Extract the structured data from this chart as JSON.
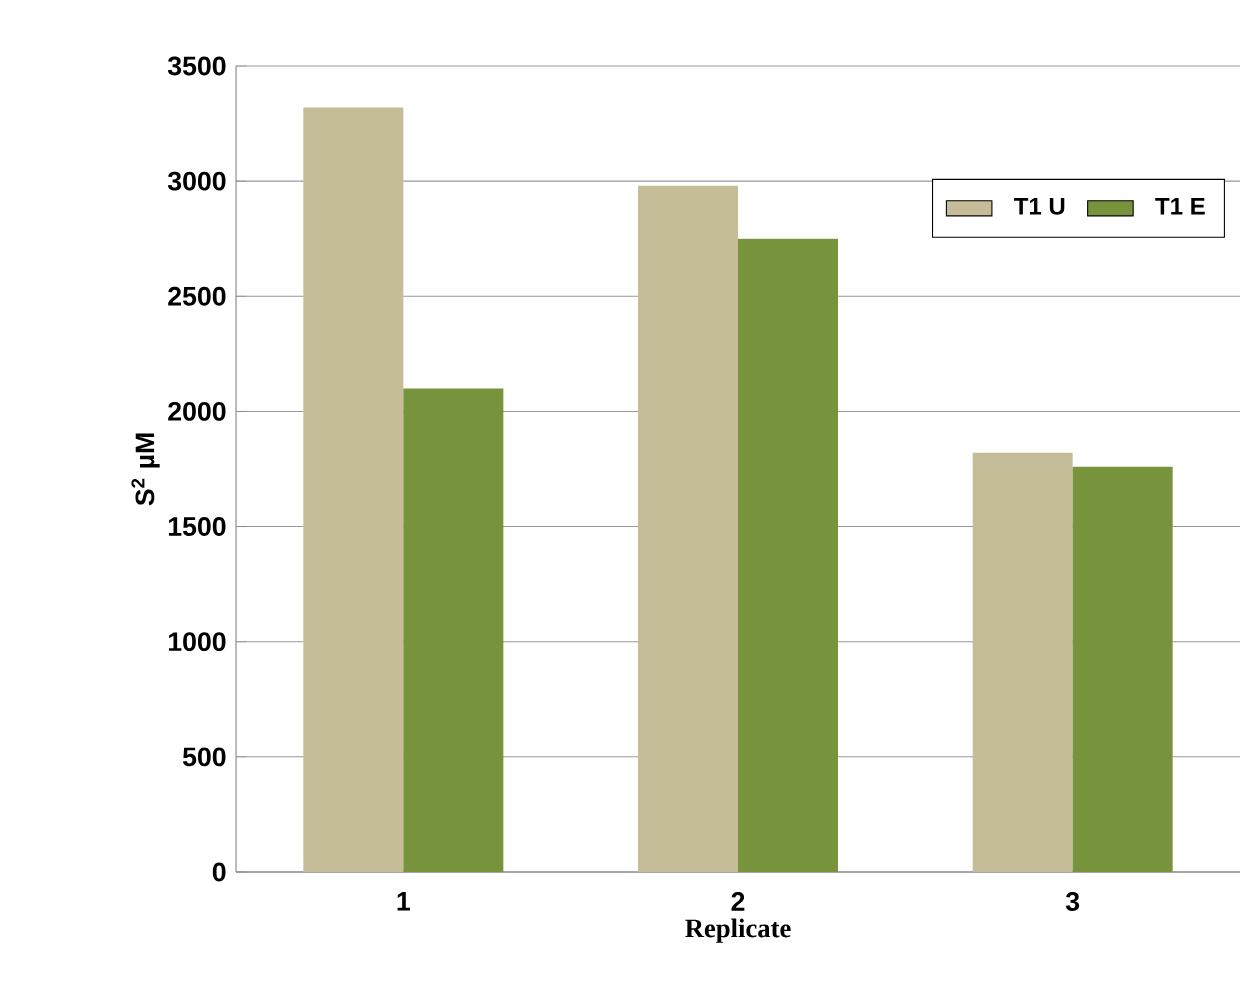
{
  "chart_data": {
    "type": "bar",
    "xlabel": "Replicate",
    "ylabel": "S$^{2}$ µM",
    "categories": [
      "1",
      "2",
      "3"
    ],
    "series": [
      {
        "name": "T1 U",
        "color": "#c4bd97",
        "values": [
          3320,
          2980,
          1820
        ]
      },
      {
        "name": "T1 E",
        "color": "#77933c",
        "values": [
          2100,
          2750,
          1760
        ]
      }
    ],
    "ylim": [
      0,
      3500
    ],
    "yticks": [
      0,
      500,
      1000,
      1500,
      2000,
      2500,
      3000,
      3500
    ],
    "grid": "y",
    "legend": "top right"
  }
}
